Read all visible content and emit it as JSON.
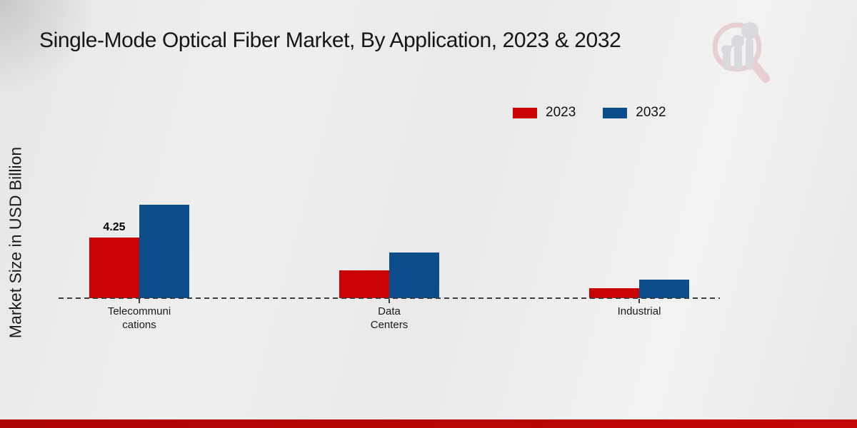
{
  "title": "Single-Mode Optical Fiber Market, By Application, 2023 & 2032",
  "ylabel": "Market Size in USD Billion",
  "legend": [
    {
      "label": "2023",
      "color": "#c90303"
    },
    {
      "label": "2032",
      "color": "#0e4d8c"
    }
  ],
  "colors": {
    "bar_2023": "#c90303",
    "bar_2032": "#0e4d8c",
    "footer_strip": "#bd0606",
    "baseline": "#3d3d3d",
    "background": "#ebebeb"
  },
  "chart_data": {
    "type": "bar",
    "title": "Single-Mode Optical Fiber Market, By Application, 2023 & 2032",
    "xlabel": "",
    "ylabel": "Market Size in USD Billion",
    "categories": [
      "Telecommunications",
      "Data Centers",
      "Industrial"
    ],
    "category_label_lines": [
      [
        "Telecommuni",
        "cations"
      ],
      [
        "Data",
        "Centers"
      ],
      [
        "Industrial"
      ]
    ],
    "series": [
      {
        "name": "2023",
        "color": "#c90303",
        "values": [
          4.25,
          1.95,
          0.7
        ]
      },
      {
        "name": "2032",
        "color": "#0e4d8c",
        "values": [
          6.55,
          3.2,
          1.3
        ]
      }
    ],
    "bar_labels": [
      {
        "series_index": 0,
        "category_index": 0,
        "text": "4.25"
      }
    ],
    "ylim": [
      0,
      7.5
    ],
    "grid": false,
    "legend_position": "top-right",
    "baseline_style": "dashed",
    "y_axis_ticks_visible": false
  },
  "logo": {
    "name": "magnifier-bar-chart-logo"
  }
}
